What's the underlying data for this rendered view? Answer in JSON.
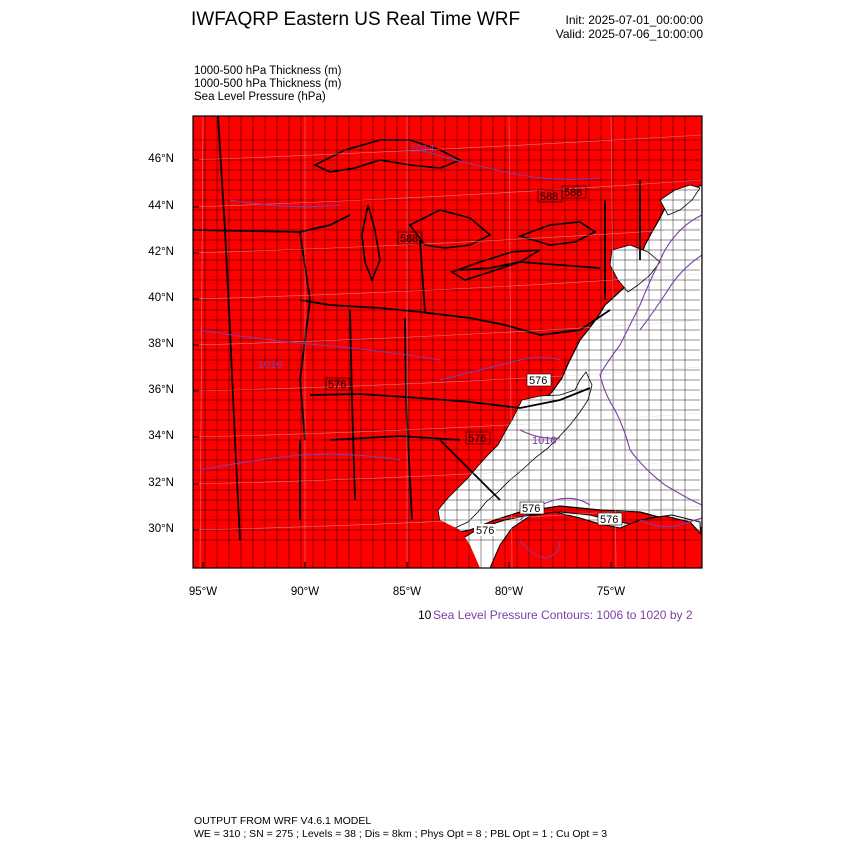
{
  "header": {
    "title": "IWFAQRP Eastern US Real Time WRF",
    "init": "Init: 2025-07-01_00:00:00",
    "valid": "Valid: 2025-07-06_10:00:00"
  },
  "fields": [
    "1000-500 hPa Thickness   (m)",
    "1000-500 hPa Thickness   (m)",
    "Sea Level Pressure   (hPa)"
  ],
  "axes": {
    "lat_labels": [
      "46°N",
      "44°N",
      "42°N",
      "40°N",
      "38°N",
      "36°N",
      "34°N",
      "32°N",
      "30°N"
    ],
    "lon_labels": [
      "95°W",
      "90°W",
      "85°W",
      "80°W",
      "75°W"
    ]
  },
  "contour_labels": [
    "588",
    "588",
    "588",
    "576",
    "576",
    "576",
    "576",
    "576",
    "576",
    "1016",
    "1014",
    "1016"
  ],
  "colors": {
    "fill": "#ff0000",
    "ocean": "#ffffff",
    "slp_contour": "#7b3fa8",
    "boundary": "#000000"
  },
  "legend": {
    "prefix": "10",
    "slp_note": "Sea Level Pressure Contours: 1006 to 1020 by 2"
  },
  "footer": {
    "line1": "OUTPUT FROM WRF V4.6.1 MODEL",
    "line2": "WE = 310 ; SN = 275 ; Levels = 38 ; Dis = 8km ; Phys Opt = 8 ; PBL Opt = 1 ; Cu Opt = 3"
  }
}
